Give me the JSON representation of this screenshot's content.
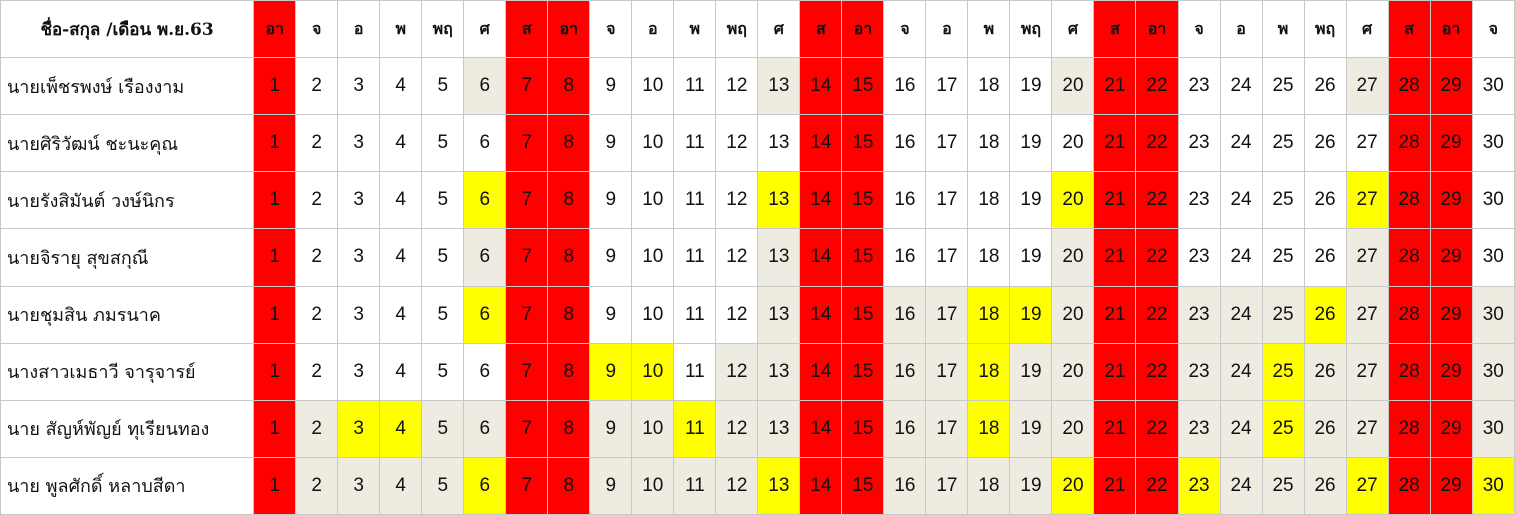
{
  "header": {
    "name_label": "ชื่อ-สกุล /เดือน พ.ย.63",
    "weekdays": [
      "อา",
      "จ",
      "อ",
      "พ",
      "พฤ",
      "ศ",
      "ส",
      "อา",
      "จ",
      "อ",
      "พ",
      "พฤ",
      "ศ",
      "ส",
      "อา",
      "จ",
      "อ",
      "พ",
      "พฤ",
      "ศ",
      "ส",
      "อา",
      "จ",
      "อ",
      "พ",
      "พฤ",
      "ศ",
      "ส",
      "อา",
      "จ"
    ],
    "weekday_colors": [
      "red",
      "white",
      "white",
      "white",
      "white",
      "white",
      "red",
      "red",
      "white",
      "white",
      "white",
      "white",
      "white",
      "red",
      "red",
      "white",
      "white",
      "white",
      "white",
      "white",
      "red",
      "red",
      "white",
      "white",
      "white",
      "white",
      "white",
      "red",
      "red",
      "white"
    ]
  },
  "days": [
    "1",
    "2",
    "3",
    "4",
    "5",
    "6",
    "7",
    "8",
    "9",
    "10",
    "11",
    "12",
    "13",
    "14",
    "15",
    "16",
    "17",
    "18",
    "19",
    "20",
    "21",
    "22",
    "23",
    "24",
    "25",
    "26",
    "27",
    "28",
    "29",
    "30"
  ],
  "colors": {
    "red": "#ff0000",
    "yellow": "#ffff00",
    "beige": "#eeece1",
    "white": "#ffffff"
  },
  "rows": [
    {
      "name": "นายเพ็ชรพงษ์  เรืองงาม",
      "cells": [
        "red",
        "white",
        "white",
        "white",
        "white",
        "beige",
        "red",
        "red",
        "white",
        "white",
        "white",
        "white",
        "beige",
        "red",
        "red",
        "white",
        "white",
        "white",
        "white",
        "beige",
        "red",
        "red",
        "white",
        "white",
        "white",
        "white",
        "beige",
        "red",
        "red",
        "white"
      ]
    },
    {
      "name": "นายศิริวัฒน์  ชะนะคุณ",
      "cells": [
        "red",
        "white",
        "white",
        "white",
        "white",
        "white",
        "red",
        "red",
        "white",
        "white",
        "white",
        "white",
        "white",
        "red",
        "red",
        "white",
        "white",
        "white",
        "white",
        "white",
        "red",
        "red",
        "white",
        "white",
        "white",
        "white",
        "white",
        "red",
        "red",
        "white"
      ]
    },
    {
      "name": "นายรังสิมันต์  วงษ์นิกร",
      "cells": [
        "red",
        "white",
        "white",
        "white",
        "white",
        "yellow",
        "red",
        "red",
        "white",
        "white",
        "white",
        "white",
        "yellow",
        "red",
        "red",
        "white",
        "white",
        "white",
        "white",
        "yellow",
        "red",
        "red",
        "white",
        "white",
        "white",
        "white",
        "yellow",
        "red",
        "red",
        "white"
      ]
    },
    {
      "name": "นายจิรายุ  สุขสกุณี",
      "cells": [
        "red",
        "white",
        "white",
        "white",
        "white",
        "beige",
        "red",
        "red",
        "white",
        "white",
        "white",
        "white",
        "beige",
        "red",
        "red",
        "white",
        "white",
        "white",
        "white",
        "beige",
        "red",
        "red",
        "white",
        "white",
        "white",
        "white",
        "beige",
        "red",
        "red",
        "white"
      ]
    },
    {
      "name": "นายชุมสิน  ภมรนาค",
      "cells": [
        "red",
        "white",
        "white",
        "white",
        "white",
        "yellow",
        "red",
        "red",
        "white",
        "white",
        "white",
        "white",
        "beige",
        "red",
        "red",
        "beige",
        "beige",
        "yellow",
        "yellow",
        "beige",
        "red",
        "red",
        "beige",
        "beige",
        "beige",
        "yellow",
        "beige",
        "red",
        "red",
        "beige"
      ]
    },
    {
      "name": "นางสาวเมธาวี  จารุจารย์",
      "cells": [
        "red",
        "white",
        "white",
        "white",
        "white",
        "white",
        "red",
        "red",
        "yellow",
        "yellow",
        "white",
        "beige",
        "beige",
        "red",
        "red",
        "beige",
        "beige",
        "yellow",
        "beige",
        "beige",
        "red",
        "red",
        "beige",
        "beige",
        "yellow",
        "beige",
        "beige",
        "red",
        "red",
        "beige"
      ]
    },
    {
      "name": "นาย สัญห์พัญย์ ทุเรียนทอง",
      "cells": [
        "red",
        "beige",
        "yellow",
        "yellow",
        "beige",
        "beige",
        "red",
        "red",
        "beige",
        "beige",
        "yellow",
        "beige",
        "beige",
        "red",
        "red",
        "beige",
        "beige",
        "yellow",
        "beige",
        "beige",
        "red",
        "red",
        "beige",
        "beige",
        "yellow",
        "beige",
        "beige",
        "red",
        "red",
        "beige"
      ]
    },
    {
      "name": "นาย  พูลศักดิ์ หลาบสีดา",
      "cells": [
        "red",
        "beige",
        "beige",
        "beige",
        "beige",
        "yellow",
        "red",
        "red",
        "beige",
        "beige",
        "beige",
        "beige",
        "yellow",
        "red",
        "red",
        "beige",
        "beige",
        "beige",
        "beige",
        "yellow",
        "red",
        "red",
        "yellow",
        "beige",
        "beige",
        "beige",
        "yellow",
        "red",
        "red",
        "yellow"
      ]
    }
  ]
}
